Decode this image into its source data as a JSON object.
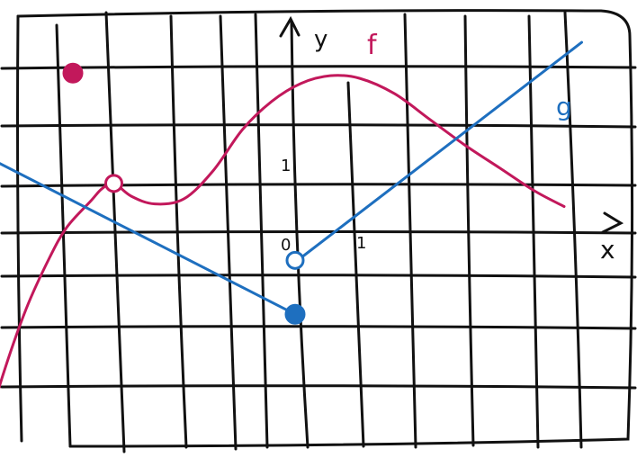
{
  "chart_data": {
    "type": "line",
    "title": "",
    "axes": {
      "x_label": "x",
      "y_label": "y",
      "origin_label": "0",
      "x_unit_label": "1",
      "y_unit_label": "1",
      "xlim": [
        -5.5,
        4.9
      ],
      "ylim": [
        -4.2,
        3.7
      ],
      "grid": true
    },
    "series": [
      {
        "name": "f",
        "color": "#c2185b",
        "points": [
          [
            -5.3,
            -4.0
          ],
          [
            -5.0,
            -2.8
          ],
          [
            -4.6,
            -1.5
          ],
          [
            -4.2,
            -0.5
          ],
          [
            -3.9,
            0.1
          ],
          [
            -3.5,
            0.6
          ],
          [
            -3.3,
            0.85
          ],
          [
            -3.1,
            0.95
          ],
          [
            -2.8,
            0.7
          ],
          [
            -2.4,
            0.55
          ],
          [
            -1.9,
            0.65
          ],
          [
            -1.4,
            1.2
          ],
          [
            -0.9,
            2.0
          ],
          [
            -0.4,
            2.55
          ],
          [
            0.1,
            2.9
          ],
          [
            0.6,
            3.05
          ],
          [
            1.1,
            3.0
          ],
          [
            1.7,
            2.7
          ],
          [
            2.3,
            2.2
          ],
          [
            2.9,
            1.7
          ],
          [
            3.5,
            1.25
          ],
          [
            4.1,
            0.8
          ],
          [
            4.6,
            0.5
          ]
        ],
        "closed_points": [
          [
            -3.8,
            3.1
          ]
        ],
        "open_points": [
          [
            -3.1,
            0.95
          ]
        ]
      },
      {
        "name": "g",
        "color": "#1e6fbf",
        "points": [
          [
            -5.5,
            1.6
          ],
          [
            0.0,
            -1.6
          ]
        ],
        "points2": [
          [
            0.1,
            -0.5
          ],
          [
            4.9,
            3.7
          ]
        ],
        "closed_points": [
          [
            0.0,
            -1.6
          ]
        ],
        "open_points": [
          [
            0.0,
            -0.55
          ]
        ]
      }
    ]
  },
  "labels": {
    "f": "f",
    "g": "g",
    "x": "x",
    "y": "y",
    "zero": "0",
    "one_x": "1",
    "one_y": "1"
  }
}
